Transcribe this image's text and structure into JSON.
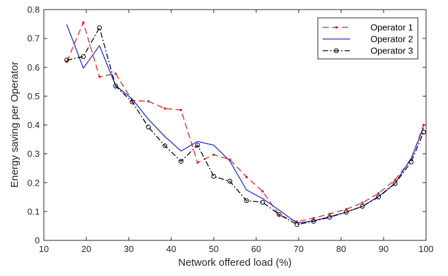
{
  "chart_data": {
    "type": "line",
    "xlabel": "Network offered load (%)",
    "ylabel": "Energy saving per Operator",
    "xlim": [
      10,
      100
    ],
    "ylim": [
      0,
      0.8
    ],
    "xticks": [
      10,
      20,
      30,
      40,
      50,
      60,
      70,
      80,
      90,
      100
    ],
    "yticks": [
      0,
      0.1,
      0.2,
      0.3,
      0.4,
      0.5,
      0.6,
      0.7,
      0.8
    ],
    "grid": false,
    "legend_position": "top-right",
    "series": [
      {
        "name": "Operator 1",
        "color": "#e0211f",
        "line_style": "dashed",
        "marker": "dot",
        "x": [
          15.4,
          19.3,
          23.1,
          26.9,
          30.8,
          34.6,
          38.5,
          42.3,
          46.2,
          50.0,
          53.8,
          57.7,
          61.5,
          65.4,
          69.6,
          73.5,
          77.3,
          81.2,
          85.0,
          88.8,
          92.7,
          96.5,
          99.4
        ],
        "y": [
          0.62,
          0.755,
          0.567,
          0.578,
          0.485,
          0.482,
          0.457,
          0.452,
          0.27,
          0.297,
          0.28,
          0.22,
          0.17,
          0.088,
          0.065,
          0.077,
          0.092,
          0.108,
          0.13,
          0.163,
          0.21,
          0.28,
          0.4
        ]
      },
      {
        "name": "Operator 2",
        "color": "#1f2fd6",
        "line_style": "solid",
        "marker": "none",
        "x": [
          15.4,
          19.3,
          23.1,
          26.9,
          30.8,
          34.6,
          38.5,
          42.3,
          46.2,
          50.0,
          53.8,
          57.7,
          61.5,
          65.4,
          69.6,
          73.5,
          77.3,
          81.2,
          85.0,
          88.8,
          92.7,
          96.5,
          99.4
        ],
        "y": [
          0.748,
          0.597,
          0.675,
          0.537,
          0.49,
          0.42,
          0.36,
          0.31,
          0.343,
          0.33,
          0.275,
          0.175,
          0.145,
          0.105,
          0.06,
          0.068,
          0.082,
          0.098,
          0.118,
          0.152,
          0.198,
          0.285,
          0.39
        ]
      },
      {
        "name": "Operator 3",
        "color": "#000000",
        "line_style": "dashdot",
        "marker": "circle",
        "x": [
          15.4,
          19.3,
          23.1,
          26.9,
          30.8,
          34.6,
          38.5,
          42.3,
          46.2,
          50.0,
          53.8,
          57.7,
          61.5,
          65.4,
          69.6,
          73.5,
          77.3,
          81.2,
          85.0,
          88.8,
          92.7,
          96.5,
          99.4
        ],
        "y": [
          0.625,
          0.637,
          0.737,
          0.535,
          0.48,
          0.393,
          0.328,
          0.274,
          0.33,
          0.222,
          0.205,
          0.138,
          0.132,
          0.09,
          0.055,
          0.066,
          0.08,
          0.098,
          0.118,
          0.15,
          0.197,
          0.272,
          0.375
        ]
      }
    ]
  }
}
